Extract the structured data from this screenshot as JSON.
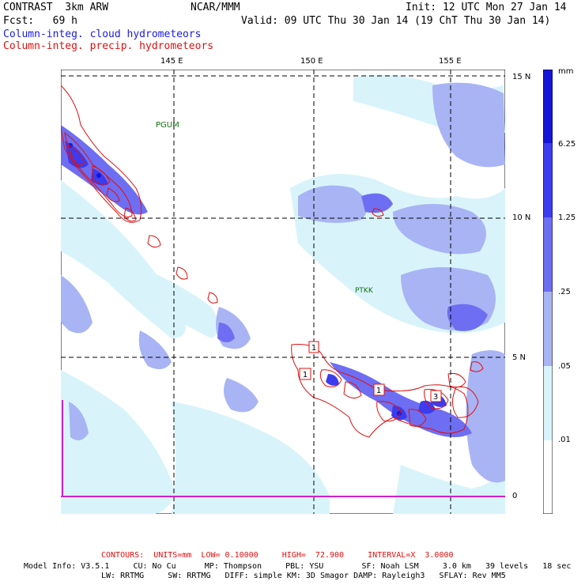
{
  "header": {
    "model": "CONTRAST  3km ARW",
    "org": "NCAR/MMM",
    "init": "Init: 12 UTC Mon 27 Jan 14",
    "fcst": "Fcst:   69 h",
    "valid": "Valid: 09 UTC Thu 30 Jan 14 (19 ChT Thu 30 Jan 14)",
    "field_cloud": "Column-integ. cloud hydrometeors",
    "field_precip": "Column-integ. precip. hydrometeors"
  },
  "map": {
    "lon_labels": [
      "145 E",
      "150 E",
      "155 E"
    ],
    "lat_labels": [
      "15 N",
      "10 N",
      "5 N",
      "0"
    ],
    "stations": [
      "PGUM",
      "PTKK"
    ],
    "contour_labels": [
      "1",
      "1",
      "1",
      "3"
    ]
  },
  "legend": {
    "unit": "mm",
    "levels": [
      "6.25",
      "1.25",
      ".25",
      ".05",
      ".01"
    ],
    "colors": [
      "#1414d8",
      "#3c3cee",
      "#6e6ef2",
      "#a8b4f4",
      "#d8f4fa",
      "#ffffff"
    ]
  },
  "footer": {
    "contours": "CONTOURS:  UNITS=mm  LOW= 0.10000     HIGH=  72.900     INTERVAL=X  3.0000",
    "model_info_1": "Model Info: V3.5.1     CU: No Cu      MP: Thompson     PBL: YSU        SF: Noah LSM     3.0 km   39 levels   18 sec",
    "model_info_2": "LW: RRTMG     SW: RRTMG   DIFF: simple KM: 3D Smagor DAMP: Rayleigh3   SFLAY: Rev MM5"
  }
}
